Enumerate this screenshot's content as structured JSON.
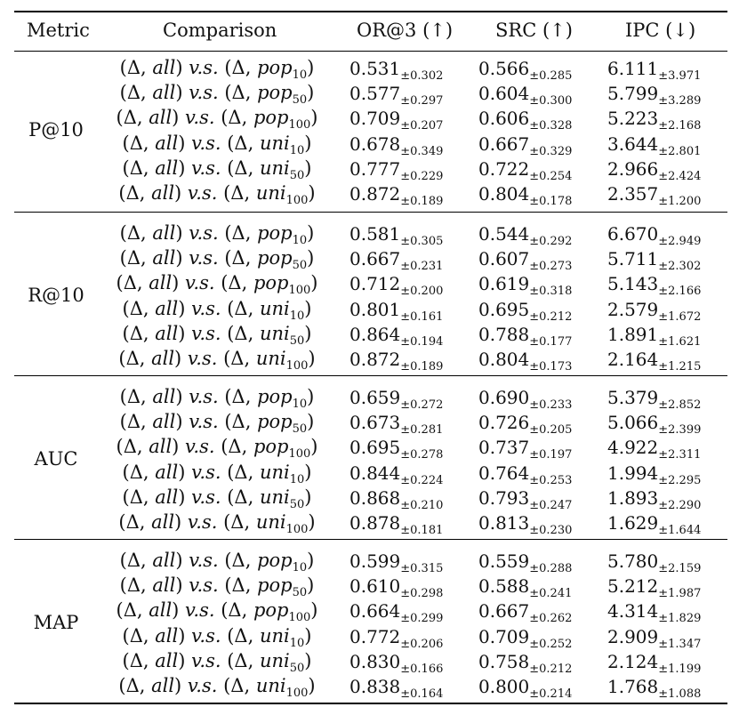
{
  "headers": {
    "metric": "Metric",
    "comparison": "Comparison",
    "or3": "OR@3 (↑)",
    "src": "SRC (↑)",
    "ipc": "IPC (↓)"
  },
  "vs_text": "v.s.",
  "groups": [
    {
      "metric": "P@10",
      "rows": [
        {
          "base": "pop",
          "sub": "10",
          "or3": "0.531",
          "or3_sd": "±0.302",
          "src": "0.566",
          "src_sd": "±0.285",
          "ipc": "6.111",
          "ipc_sd": "±3.971"
        },
        {
          "base": "pop",
          "sub": "50",
          "or3": "0.577",
          "or3_sd": "±0.297",
          "src": "0.604",
          "src_sd": "±0.300",
          "ipc": "5.799",
          "ipc_sd": "±3.289"
        },
        {
          "base": "pop",
          "sub": "100",
          "or3": "0.709",
          "or3_sd": "±0.207",
          "src": "0.606",
          "src_sd": "±0.328",
          "ipc": "5.223",
          "ipc_sd": "±2.168"
        },
        {
          "base": "uni",
          "sub": "10",
          "or3": "0.678",
          "or3_sd": "±0.349",
          "src": "0.667",
          "src_sd": "±0.329",
          "ipc": "3.644",
          "ipc_sd": "±2.801"
        },
        {
          "base": "uni",
          "sub": "50",
          "or3": "0.777",
          "or3_sd": "±0.229",
          "src": "0.722",
          "src_sd": "±0.254",
          "ipc": "2.966",
          "ipc_sd": "±2.424"
        },
        {
          "base": "uni",
          "sub": "100",
          "or3": "0.872",
          "or3_sd": "±0.189",
          "src": "0.804",
          "src_sd": "±0.178",
          "ipc": "2.357",
          "ipc_sd": "±1.200"
        }
      ]
    },
    {
      "metric": "R@10",
      "rows": [
        {
          "base": "pop",
          "sub": "10",
          "or3": "0.581",
          "or3_sd": "±0.305",
          "src": "0.544",
          "src_sd": "±0.292",
          "ipc": "6.670",
          "ipc_sd": "±2.949"
        },
        {
          "base": "pop",
          "sub": "50",
          "or3": "0.667",
          "or3_sd": "±0.231",
          "src": "0.607",
          "src_sd": "±0.273",
          "ipc": "5.711",
          "ipc_sd": "±2.302"
        },
        {
          "base": "pop",
          "sub": "100",
          "or3": "0.712",
          "or3_sd": "±0.200",
          "src": "0.619",
          "src_sd": "±0.318",
          "ipc": "5.143",
          "ipc_sd": "±2.166"
        },
        {
          "base": "uni",
          "sub": "10",
          "or3": "0.801",
          "or3_sd": "±0.161",
          "src": "0.695",
          "src_sd": "±0.212",
          "ipc": "2.579",
          "ipc_sd": "±1.672"
        },
        {
          "base": "uni",
          "sub": "50",
          "or3": "0.864",
          "or3_sd": "±0.194",
          "src": "0.788",
          "src_sd": "±0.177",
          "ipc": "1.891",
          "ipc_sd": "±1.621"
        },
        {
          "base": "uni",
          "sub": "100",
          "or3": "0.872",
          "or3_sd": "±0.189",
          "src": "0.804",
          "src_sd": "±0.173",
          "ipc": "2.164",
          "ipc_sd": "±1.215"
        }
      ]
    },
    {
      "metric": "AUC",
      "rows": [
        {
          "base": "pop",
          "sub": "10",
          "or3": "0.659",
          "or3_sd": "±0.272",
          "src": "0.690",
          "src_sd": "±0.233",
          "ipc": "5.379",
          "ipc_sd": "±2.852"
        },
        {
          "base": "pop",
          "sub": "50",
          "or3": "0.673",
          "or3_sd": "±0.281",
          "src": "0.726",
          "src_sd": "±0.205",
          "ipc": "5.066",
          "ipc_sd": "±2.399"
        },
        {
          "base": "pop",
          "sub": "100",
          "or3": "0.695",
          "or3_sd": "±0.278",
          "src": "0.737",
          "src_sd": "±0.197",
          "ipc": "4.922",
          "ipc_sd": "±2.311"
        },
        {
          "base": "uni",
          "sub": "10",
          "or3": "0.844",
          "or3_sd": "±0.224",
          "src": "0.764",
          "src_sd": "±0.253",
          "ipc": "1.994",
          "ipc_sd": "±2.295"
        },
        {
          "base": "uni",
          "sub": "50",
          "or3": "0.868",
          "or3_sd": "±0.210",
          "src": "0.793",
          "src_sd": "±0.247",
          "ipc": "1.893",
          "ipc_sd": "±2.290"
        },
        {
          "base": "uni",
          "sub": "100",
          "or3": "0.878",
          "or3_sd": "±0.181",
          "src": "0.813",
          "src_sd": "±0.230",
          "ipc": "1.629",
          "ipc_sd": "±1.644"
        }
      ]
    },
    {
      "metric": "MAP",
      "rows": [
        {
          "base": "pop",
          "sub": "10",
          "or3": "0.599",
          "or3_sd": "±0.315",
          "src": "0.559",
          "src_sd": "±0.288",
          "ipc": "5.780",
          "ipc_sd": "±2.159"
        },
        {
          "base": "pop",
          "sub": "50",
          "or3": "0.610",
          "or3_sd": "±0.298",
          "src": "0.588",
          "src_sd": "±0.241",
          "ipc": "5.212",
          "ipc_sd": "±1.987"
        },
        {
          "base": "pop",
          "sub": "100",
          "or3": "0.664",
          "or3_sd": "±0.299",
          "src": "0.667",
          "src_sd": "±0.262",
          "ipc": "4.314",
          "ipc_sd": "±1.829"
        },
        {
          "base": "uni",
          "sub": "10",
          "or3": "0.772",
          "or3_sd": "±0.206",
          "src": "0.709",
          "src_sd": "±0.252",
          "ipc": "2.909",
          "ipc_sd": "±1.347"
        },
        {
          "base": "uni",
          "sub": "50",
          "or3": "0.830",
          "or3_sd": "±0.166",
          "src": "0.758",
          "src_sd": "±0.212",
          "ipc": "2.124",
          "ipc_sd": "±1.199"
        },
        {
          "base": "uni",
          "sub": "100",
          "or3": "0.838",
          "or3_sd": "±0.164",
          "src": "0.800",
          "src_sd": "±0.214",
          "ipc": "1.768",
          "ipc_sd": "±1.088"
        }
      ]
    }
  ]
}
